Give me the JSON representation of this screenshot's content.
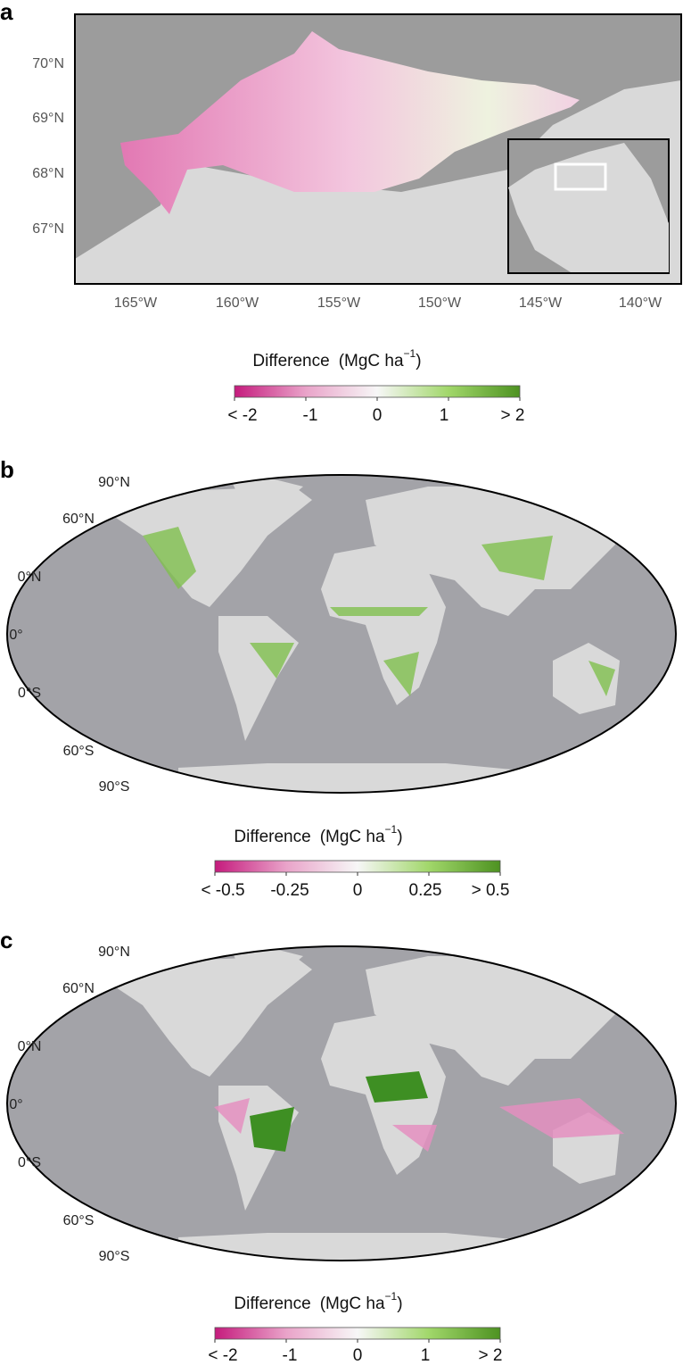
{
  "panels": [
    {
      "letter": "a",
      "lat_labels": [
        "70°N",
        "69°N",
        "68°N",
        "67°N"
      ],
      "lon_labels": [
        "165°W",
        "160°W",
        "155°W",
        "150°W",
        "145°W",
        "140°W"
      ],
      "colorbar": {
        "title": "Difference",
        "unit": "(MgC ha",
        "unit_exp": "−1",
        "unit_close": ")",
        "ticks": [
          "< -2",
          "-1",
          "0",
          "1",
          "> 2"
        ]
      }
    },
    {
      "letter": "b",
      "lat_labels": [
        "90°N",
        "60°N",
        "0°N",
        "0°",
        "0°S",
        "60°S",
        "90°S"
      ],
      "colorbar": {
        "title": "Difference",
        "unit": "(MgC ha",
        "unit_exp": "−1",
        "unit_close": ")",
        "ticks": [
          "< -0.5",
          "-0.25",
          "0",
          "0.25",
          "> 0.5"
        ]
      }
    },
    {
      "letter": "c",
      "lat_labels": [
        "90°N",
        "60°N",
        "0°N",
        "0°",
        "0°S",
        "60°S",
        "90°S"
      ],
      "colorbar": {
        "title": "Difference",
        "unit": "(MgC ha",
        "unit_exp": "−1",
        "unit_close": ")",
        "ticks": [
          "< -2",
          "-1",
          "0",
          "1",
          "> 2"
        ]
      }
    }
  ]
}
